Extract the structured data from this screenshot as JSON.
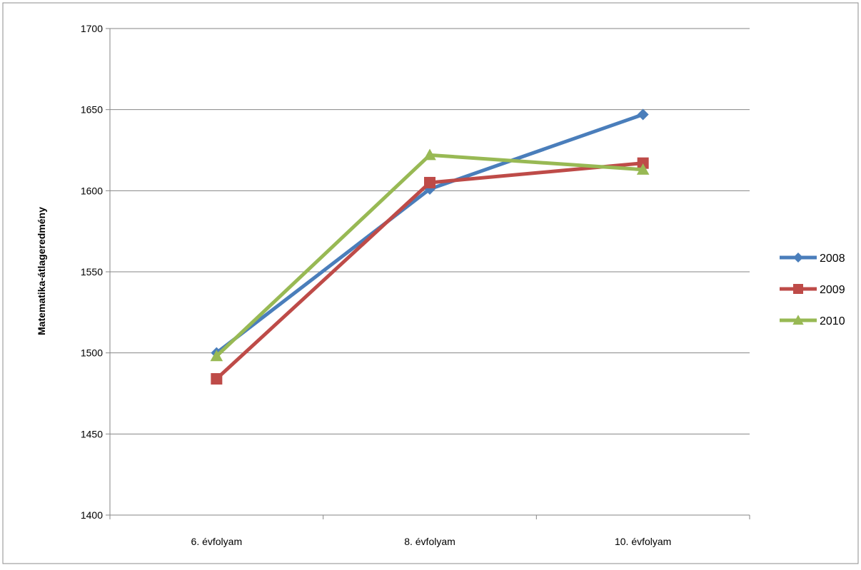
{
  "chart_data": {
    "type": "line",
    "title": "",
    "xlabel": "",
    "ylabel": "Matematika-átlageredmény",
    "categories": [
      "6. évfolyam",
      "8. évfolyam",
      "10. évfolyam"
    ],
    "ylim": [
      1400,
      1700
    ],
    "yticks": [
      1400,
      1450,
      1500,
      1550,
      1600,
      1650,
      1700
    ],
    "grid": true,
    "legend_position": "right",
    "series": [
      {
        "name": "2008",
        "values": [
          1500,
          1601,
          1647
        ],
        "color": "#4a7ebb",
        "marker": "diamond"
      },
      {
        "name": "2009",
        "values": [
          1484,
          1605,
          1617
        ],
        "color": "#be4b48",
        "marker": "square"
      },
      {
        "name": "2010",
        "values": [
          1498,
          1622,
          1613
        ],
        "color": "#98b954",
        "marker": "triangle"
      }
    ]
  }
}
